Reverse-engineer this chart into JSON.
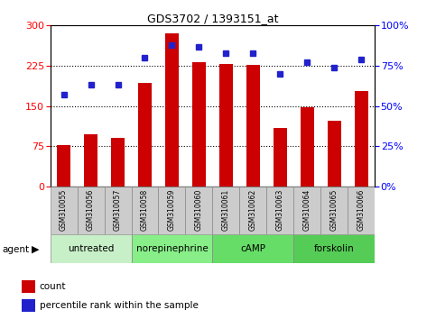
{
  "title": "GDS3702 / 1393151_at",
  "categories": [
    "GSM310055",
    "GSM310056",
    "GSM310057",
    "GSM310058",
    "GSM310059",
    "GSM310060",
    "GSM310061",
    "GSM310062",
    "GSM310063",
    "GSM310064",
    "GSM310065",
    "GSM310066"
  ],
  "count_values": [
    78,
    97,
    90,
    193,
    285,
    232,
    228,
    227,
    110,
    147,
    123,
    178
  ],
  "percentile_values": [
    57,
    63,
    63,
    80,
    88,
    87,
    83,
    83,
    70,
    77,
    74,
    79
  ],
  "bar_color": "#cc0000",
  "dot_color": "#2222cc",
  "left_ylim": [
    0,
    300
  ],
  "right_ylim": [
    0,
    100
  ],
  "left_yticks": [
    0,
    75,
    150,
    225,
    300
  ],
  "right_yticks": [
    0,
    25,
    50,
    75,
    100
  ],
  "right_yticklabels": [
    "0%",
    "25%",
    "50%",
    "75%",
    "100%"
  ],
  "agent_groups": [
    {
      "label": "untreated",
      "start": 0,
      "end": 3,
      "color": "#c8f0c8"
    },
    {
      "label": "norepinephrine",
      "start": 3,
      "end": 6,
      "color": "#88ee88"
    },
    {
      "label": "cAMP",
      "start": 6,
      "end": 9,
      "color": "#66dd66"
    },
    {
      "label": "forskolin",
      "start": 9,
      "end": 12,
      "color": "#55cc55"
    }
  ],
  "legend_count_label": "count",
  "legend_pct_label": "percentile rank within the sample",
  "dotted_gridlines": [
    75,
    150,
    225
  ],
  "bar_width": 0.5
}
